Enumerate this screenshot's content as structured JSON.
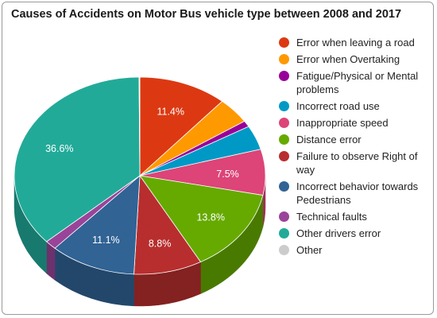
{
  "chart_data": {
    "type": "pie",
    "title": "Causes of Accidents on Motor Bus vehicle type between 2008 and 2017",
    "legend_position": "right",
    "slices": [
      {
        "label": "Error when leaving a road",
        "value": 11.4,
        "color": "#dc3912",
        "display": "11.4%"
      },
      {
        "label": "Error when Overtaking",
        "value": 4.3,
        "color": "#ff9900",
        "display": ""
      },
      {
        "label": "Fatigue/Physical or Mental problems",
        "value": 1.0,
        "color": "#990099",
        "display": ""
      },
      {
        "label": "Incorrect road use",
        "value": 4.0,
        "color": "#0099c6",
        "display": ""
      },
      {
        "label": "Inappropriate speed",
        "value": 7.5,
        "color": "#dd4477",
        "display": "7.5%"
      },
      {
        "label": "Distance error",
        "value": 13.8,
        "color": "#66aa00",
        "display": "13.8%"
      },
      {
        "label": "Failure to observe Right of way",
        "value": 8.8,
        "color": "#b82e2e",
        "display": "8.8%"
      },
      {
        "label": "Incorrect behavior towards Pedestrians",
        "value": 11.1,
        "color": "#316395",
        "display": "11.1%"
      },
      {
        "label": "Technical faults",
        "value": 1.5,
        "color": "#994499",
        "display": ""
      },
      {
        "label": "Other drivers error",
        "value": 36.6,
        "color": "#22aa99",
        "display": "36.6%"
      },
      {
        "label": "Other",
        "value": 0.1,
        "color": "#cccccc",
        "display": ""
      }
    ]
  }
}
